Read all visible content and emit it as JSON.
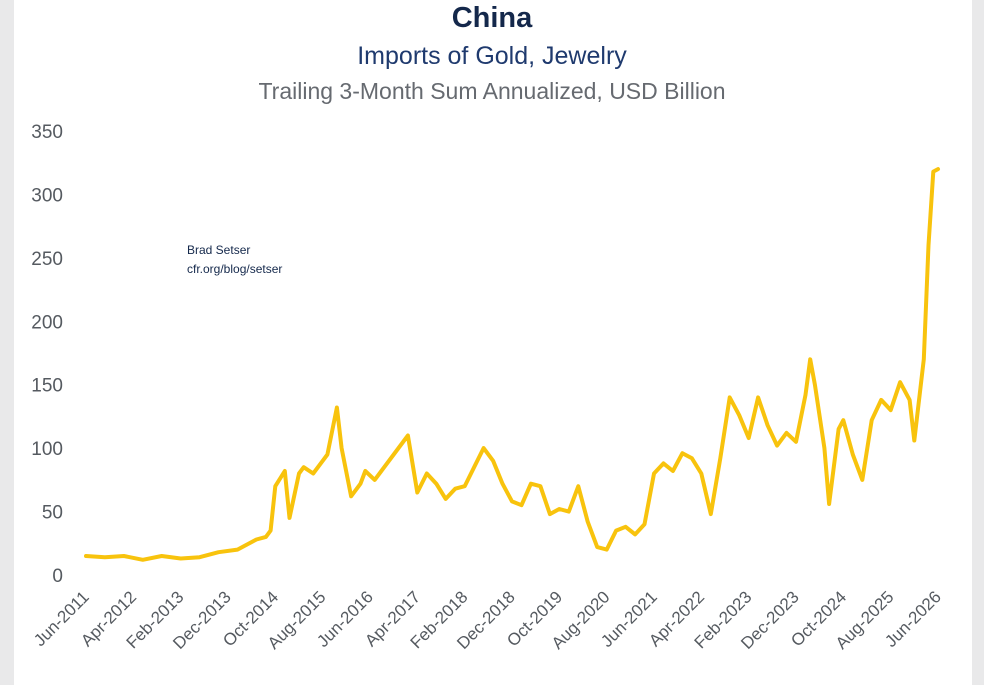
{
  "header": {
    "title": "China",
    "subtitle": "Imports of Gold, Jewelry",
    "subtitle2": "Trailing 3-Month Sum Annualized, USD Billion"
  },
  "credit": {
    "line1": "Brad Setser",
    "line2": "cfr.org/blog/setser"
  },
  "chart_data": {
    "type": "line",
    "title": "China",
    "subtitle": "Imports of Gold, Jewelry — Trailing 3-Month Sum Annualized, USD Billion",
    "xlabel": "",
    "ylabel": "",
    "ylim": [
      0,
      350
    ],
    "yticks": [
      0,
      50,
      100,
      150,
      200,
      250,
      300,
      350
    ],
    "xtick_labels": [
      "Jun-2011",
      "Apr-2012",
      "Feb-2013",
      "Dec-2013",
      "Oct-2014",
      "Aug-2015",
      "Jun-2016",
      "Apr-2017",
      "Feb-2018",
      "Dec-2018",
      "Oct-2019",
      "Aug-2020",
      "Jun-2021",
      "Apr-2022",
      "Feb-2023",
      "Dec-2023",
      "Oct-2024",
      "Aug-2025",
      "Jun-2026"
    ],
    "grid": false,
    "line_color": "#f8c30d",
    "series": [
      {
        "x": [
          "Jun-2011",
          "Oct-2011",
          "Feb-2012",
          "Jun-2012",
          "Oct-2012",
          "Feb-2013",
          "Jun-2013",
          "Oct-2013",
          "Feb-2014",
          "Jun-2014",
          "Aug-2014",
          "Sep-2014",
          "Oct-2014",
          "Dec-2014",
          "Jan-2015",
          "Mar-2015",
          "Apr-2015",
          "Jun-2015",
          "Aug-2015",
          "Sep-2015",
          "Nov-2015",
          "Dec-2015",
          "Feb-2016",
          "Apr-2016",
          "May-2016",
          "Jul-2016",
          "Sep-2016",
          "Nov-2016",
          "Feb-2017",
          "Apr-2017",
          "Jun-2017",
          "Aug-2017",
          "Oct-2017",
          "Dec-2017",
          "Feb-2018",
          "Apr-2018",
          "Jun-2018",
          "Aug-2018",
          "Oct-2018",
          "Dec-2018",
          "Feb-2019",
          "Apr-2019",
          "Jun-2019",
          "Aug-2019",
          "Oct-2019",
          "Dec-2019",
          "Feb-2020",
          "Apr-2020",
          "Jun-2020",
          "Aug-2020",
          "Oct-2020",
          "Dec-2020",
          "Feb-2021",
          "Apr-2021",
          "Jun-2021",
          "Aug-2021",
          "Oct-2021",
          "Dec-2021",
          "Feb-2022",
          "Apr-2022",
          "Jun-2022",
          "Aug-2022",
          "Oct-2022",
          "Dec-2022",
          "Feb-2023",
          "Apr-2023",
          "Jun-2023",
          "Aug-2023",
          "Oct-2023",
          "Dec-2023",
          "Feb-2024",
          "Mar-2024",
          "Apr-2024",
          "Jun-2024",
          "Jul-2024",
          "Sep-2024",
          "Oct-2024",
          "Dec-2024",
          "Feb-2025",
          "Apr-2025",
          "Jun-2025",
          "Aug-2025",
          "Oct-2025",
          "Dec-2025",
          "Jan-2026",
          "Mar-2026",
          "Apr-2026",
          "May-2026",
          "Jun-2026"
        ],
        "values": [
          15,
          14,
          15,
          12,
          15,
          13,
          14,
          18,
          20,
          28,
          30,
          35,
          70,
          82,
          45,
          80,
          85,
          80,
          90,
          95,
          132,
          100,
          62,
          72,
          82,
          75,
          85,
          95,
          110,
          65,
          80,
          72,
          60,
          68,
          70,
          85,
          100,
          90,
          72,
          58,
          55,
          72,
          70,
          48,
          52,
          50,
          70,
          42,
          22,
          20,
          35,
          38,
          32,
          40,
          80,
          88,
          82,
          96,
          92,
          80,
          48,
          92,
          140,
          126,
          108,
          140,
          118,
          102,
          112,
          105,
          142,
          170,
          150,
          100,
          56,
          115,
          122,
          95,
          75,
          122,
          138,
          130,
          152,
          138,
          106,
          170,
          260,
          318,
          320
        ]
      }
    ]
  }
}
